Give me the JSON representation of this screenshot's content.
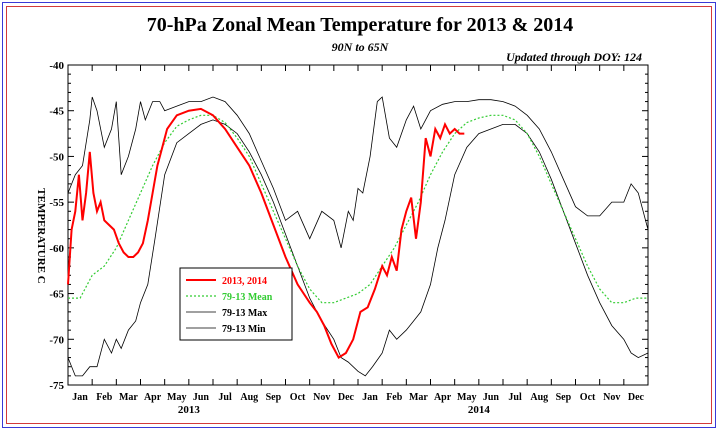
{
  "chart_data": {
    "type": "line",
    "title": "70-hPa Zonal Mean Temperature for 2013 & 2014",
    "subtitle": "90N to 65N",
    "updated": "Updated through DOY: 124",
    "ylabel": "TEMPERATURE C",
    "ylim": [
      -75,
      -40
    ],
    "yticks": [
      -75,
      -70,
      -65,
      -60,
      -55,
      -50,
      -45,
      -40
    ],
    "xlim_months": [
      0,
      24
    ],
    "month_labels": [
      "Jan",
      "Feb",
      "Mar",
      "Apr",
      "May",
      "Jun",
      "Jul",
      "Aug",
      "Sep",
      "Oct",
      "Nov",
      "Dec",
      "Jan",
      "Feb",
      "Mar",
      "Apr",
      "May",
      "Jun",
      "Jul",
      "Aug",
      "Sep",
      "Oct",
      "Nov",
      "Dec"
    ],
    "year_labels": [
      {
        "year": "2013",
        "at_month": 5
      },
      {
        "year": "2014",
        "at_month": 17
      }
    ],
    "legend": {
      "placement": "lower-left",
      "entries": [
        {
          "label": "2013, 2014",
          "color": "#ff0000",
          "style": "solid-thick"
        },
        {
          "label": "79-13 Mean",
          "color": "#33cc33",
          "style": "dotted"
        },
        {
          "label": "79-13 Max",
          "color": "#000000",
          "style": "solid"
        },
        {
          "label": "79-13 Min",
          "color": "#000000",
          "style": "solid"
        }
      ]
    },
    "series": [
      {
        "name": "2013, 2014",
        "color": "#ff0000",
        "x_months": [
          0,
          0.15,
          0.3,
          0.45,
          0.6,
          0.75,
          0.9,
          1.05,
          1.2,
          1.35,
          1.5,
          1.7,
          1.9,
          2.1,
          2.3,
          2.5,
          2.7,
          2.9,
          3.1,
          3.3,
          3.5,
          3.7,
          3.9,
          4.1,
          4.5,
          5.0,
          5.5,
          6.0,
          6.5,
          7.0,
          7.5,
          8.0,
          8.5,
          9.0,
          9.5,
          10.0,
          10.3,
          10.6,
          10.9,
          11.2,
          11.5,
          11.8,
          12.1,
          12.4,
          12.7,
          13.0,
          13.2,
          13.4,
          13.6,
          13.8,
          14.0,
          14.2,
          14.4,
          14.6,
          14.8,
          15.0,
          15.2,
          15.4,
          15.6,
          15.8,
          16.0,
          16.2,
          16.4
        ],
        "values": [
          -64,
          -58,
          -56,
          -52,
          -57,
          -54,
          -49.5,
          -54,
          -56,
          -55,
          -57,
          -57.5,
          -58,
          -59.5,
          -60.5,
          -61,
          -61,
          -60.5,
          -59.5,
          -57,
          -54,
          -51,
          -49,
          -47,
          -45.5,
          -45,
          -44.8,
          -45.5,
          -47,
          -49,
          -51,
          -54,
          -57.5,
          -61,
          -64,
          -66,
          -67,
          -68.5,
          -70.5,
          -72,
          -71.5,
          -70,
          -67,
          -66.5,
          -64.5,
          -62,
          -63,
          -61,
          -62.5,
          -58,
          -56,
          -54.5,
          -59,
          -55,
          -48,
          -50,
          -47,
          -48,
          -46.5,
          -47.5,
          -47,
          -47.5,
          -47.5
        ]
      },
      {
        "name": "79-13 Mean",
        "color": "#33cc33",
        "x_months": [
          0,
          0.5,
          1,
          1.5,
          2,
          2.5,
          3,
          3.5,
          4,
          4.5,
          5,
          5.5,
          6,
          6.5,
          7,
          7.5,
          8,
          8.5,
          9,
          9.5,
          10,
          10.5,
          11,
          11.5,
          12,
          12.5,
          13,
          13.5,
          14,
          14.5,
          15,
          15.5,
          16,
          16.5,
          17,
          17.5,
          18,
          18.5,
          19,
          19.5,
          20,
          20.5,
          21,
          21.5,
          22,
          22.5,
          23,
          23.5,
          24
        ],
        "values": [
          -65.5,
          -65.5,
          -63,
          -62,
          -60,
          -57,
          -54,
          -51,
          -48.5,
          -46.7,
          -46,
          -45.5,
          -45.5,
          -46.3,
          -48,
          -50,
          -53,
          -56,
          -59,
          -62,
          -64.5,
          -66,
          -66,
          -65.5,
          -65,
          -64,
          -62,
          -60,
          -57.5,
          -55,
          -52,
          -49.5,
          -47.5,
          -46.3,
          -45.8,
          -45.5,
          -45.5,
          -46,
          -47.5,
          -50,
          -53,
          -56,
          -59,
          -62,
          -64.5,
          -66,
          -66,
          -65.5,
          -65.5
        ]
      },
      {
        "name": "79-13 Max",
        "color": "#000000",
        "x_months": [
          0,
          0.3,
          0.6,
          0.9,
          1.0,
          1.2,
          1.5,
          1.8,
          2.0,
          2.2,
          2.5,
          2.8,
          3.0,
          3.2,
          3.5,
          3.8,
          4.0,
          4.5,
          5.0,
          5.5,
          6.0,
          6.5,
          7.0,
          7.5,
          8.0,
          8.5,
          9.0,
          9.5,
          10.0,
          10.5,
          11.0,
          11.3,
          11.6,
          11.8,
          12.0,
          12.2,
          12.5,
          12.8,
          13.0,
          13.3,
          13.6,
          14.0,
          14.3,
          14.6,
          15.0,
          15.5,
          16.0,
          16.5,
          17.0,
          17.5,
          18.0,
          18.5,
          19.0,
          19.5,
          20.0,
          20.5,
          21.0,
          21.5,
          22.0,
          22.5,
          23.0,
          23.3,
          23.6,
          24.0
        ],
        "values": [
          -54,
          -52,
          -51,
          -46,
          -43.5,
          -45,
          -49,
          -47,
          -44,
          -52,
          -50,
          -47,
          -44,
          -46,
          -44,
          -44,
          -45,
          -44.5,
          -44,
          -44,
          -43.5,
          -44,
          -45.5,
          -47.5,
          -50.5,
          -53.5,
          -57,
          -56,
          -59,
          -56,
          -57,
          -60,
          -56,
          -57,
          -53.5,
          -54,
          -50,
          -44,
          -43.5,
          -48,
          -49,
          -46,
          -44.5,
          -47,
          -45,
          -44.3,
          -44,
          -44,
          -43.8,
          -43.8,
          -44,
          -44.5,
          -45.5,
          -47,
          -49.5,
          -52.5,
          -55.5,
          -56.5,
          -56.5,
          -55,
          -55,
          -53,
          -54,
          -58
        ]
      },
      {
        "name": "79-13 Min",
        "color": "#000000",
        "x_months": [
          0,
          0.3,
          0.6,
          0.9,
          1.2,
          1.5,
          1.8,
          2.0,
          2.2,
          2.5,
          2.8,
          3.0,
          3.3,
          3.6,
          4.0,
          4.5,
          5.0,
          5.5,
          6.0,
          6.5,
          7.0,
          7.5,
          8.0,
          8.5,
          9.0,
          9.5,
          10.0,
          10.5,
          11.0,
          11.3,
          11.6,
          12.0,
          12.3,
          12.6,
          13.0,
          13.3,
          13.6,
          14.0,
          14.3,
          14.6,
          15.0,
          15.3,
          15.6,
          16.0,
          16.5,
          17.0,
          17.5,
          18.0,
          18.5,
          19.0,
          19.5,
          20.0,
          20.5,
          21.0,
          21.5,
          22.0,
          22.5,
          23.0,
          23.3,
          23.6,
          24.0
        ],
        "values": [
          -72,
          -74,
          -74,
          -73,
          -73,
          -70,
          -71.5,
          -70,
          -71,
          -69,
          -68,
          -66,
          -64,
          -59,
          -52,
          -48.5,
          -47.5,
          -46.5,
          -46,
          -46.5,
          -47.5,
          -49.5,
          -52,
          -55,
          -58.5,
          -62,
          -65.5,
          -68,
          -70,
          -72,
          -72.5,
          -73.5,
          -74,
          -73,
          -71.5,
          -69,
          -70,
          -69,
          -68,
          -67,
          -64,
          -60,
          -57,
          -52,
          -49,
          -47.5,
          -47,
          -46.5,
          -46.5,
          -47.5,
          -49.5,
          -52.5,
          -56,
          -59.5,
          -63,
          -66,
          -68.5,
          -70,
          -71.5,
          -72,
          -71.5
        ]
      }
    ]
  }
}
